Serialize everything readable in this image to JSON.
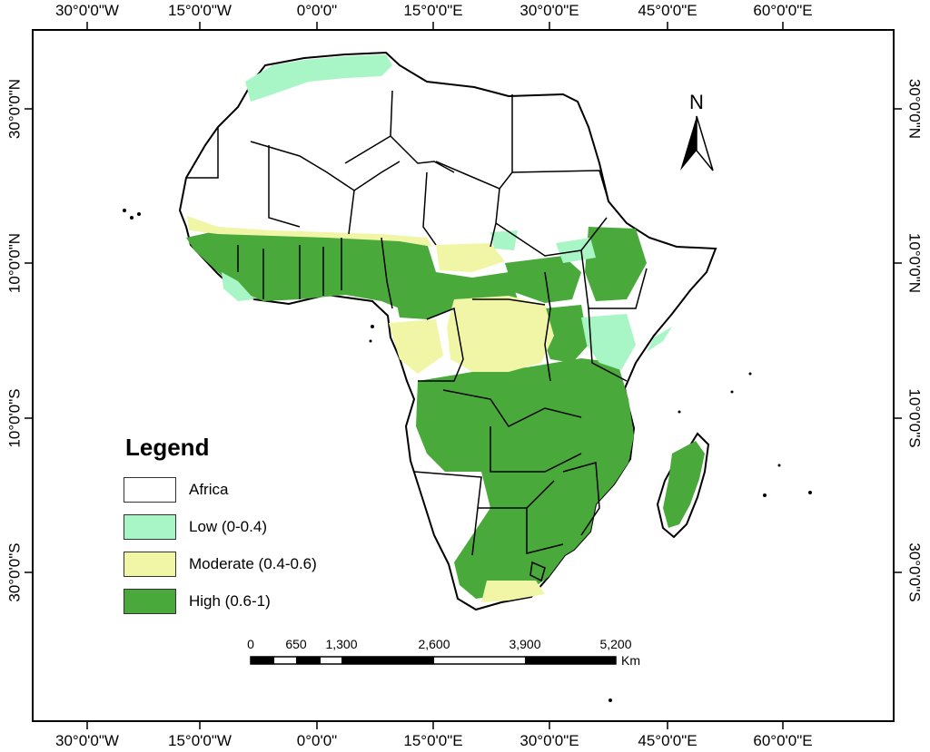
{
  "map": {
    "legend": {
      "title": "Legend",
      "items": [
        {
          "label": "Africa",
          "color": "#ffffff"
        },
        {
          "label": "Low (0-0.4)",
          "color": "#a8f5c6"
        },
        {
          "label": "Moderate (0.4-0.6)",
          "color": "#f1f6a6"
        },
        {
          "label": "High (0.6-1)",
          "color": "#49a93a"
        }
      ]
    },
    "longitude_ticks": [
      "30°0'0\"W",
      "15°0'0\"W",
      "0°0'0\"",
      "15°0'0\"E",
      "30°0'0\"E",
      "45°0'0\"E",
      "60°0'0\"E"
    ],
    "latitude_ticks": [
      "30°0'0\"N",
      "10°0'0\"N",
      "10°0'0\"S",
      "30°0'0\"S"
    ],
    "north_arrow": {
      "letter": "N",
      "icon": "north-arrow-icon"
    },
    "scale_bar": {
      "labels": [
        "0",
        "650",
        "1,300",
        "2,600",
        "3,900",
        "5,200"
      ],
      "unit": "Km"
    }
  }
}
